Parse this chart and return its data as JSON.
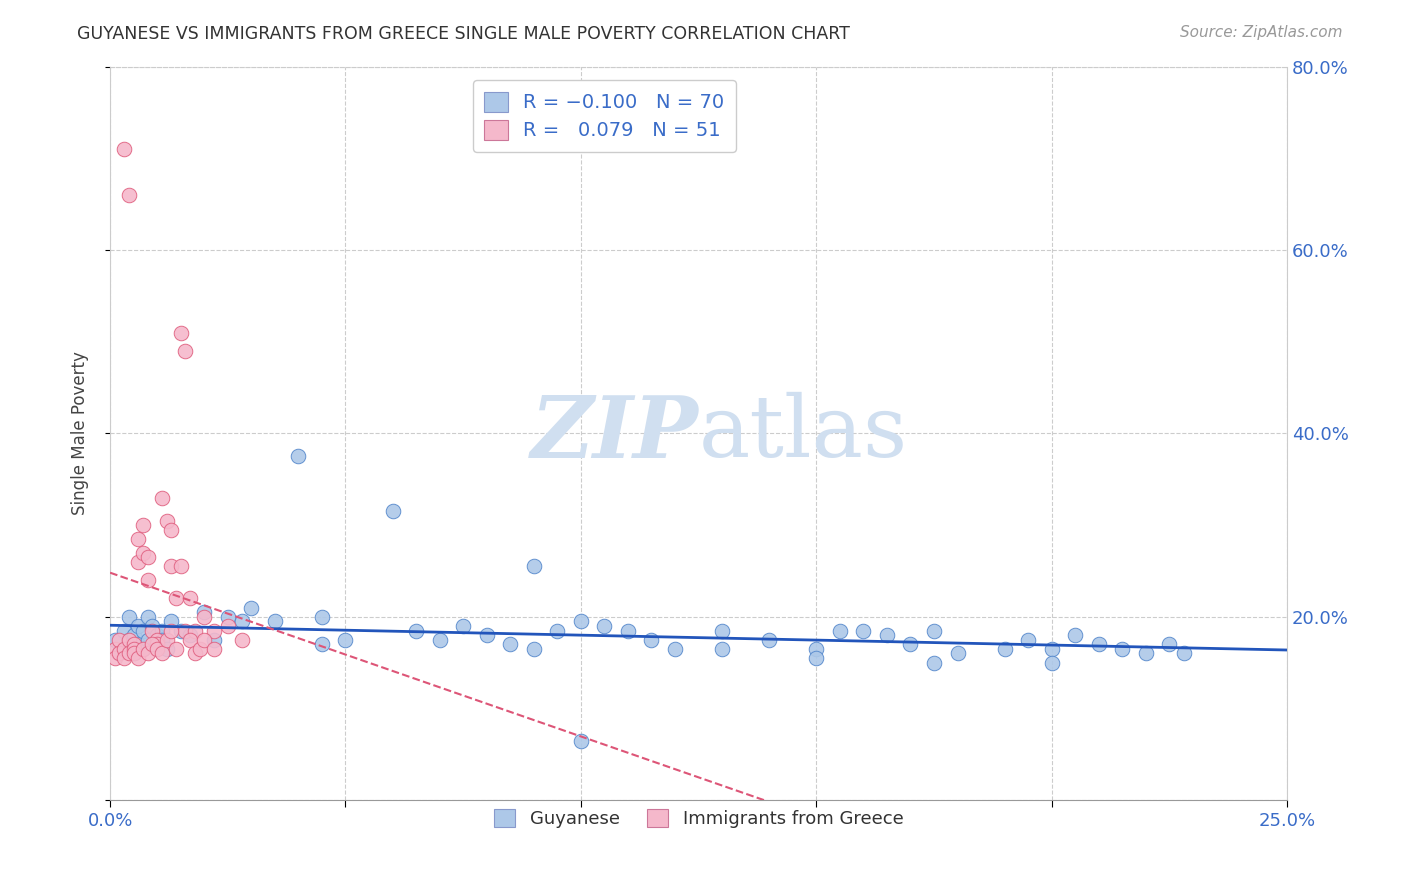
{
  "title": "GUYANESE VS IMMIGRANTS FROM GREECE SINGLE MALE POVERTY CORRELATION CHART",
  "source": "Source: ZipAtlas.com",
  "ylabel": "Single Male Poverty",
  "xlim": [
    0.0,
    0.25
  ],
  "ylim": [
    0.0,
    0.8
  ],
  "xticks": [
    0.0,
    0.05,
    0.1,
    0.15,
    0.2,
    0.25
  ],
  "yticks": [
    0.0,
    0.2,
    0.4,
    0.6,
    0.8
  ],
  "blue_R": -0.1,
  "blue_N": 70,
  "pink_R": 0.079,
  "pink_N": 51,
  "blue_color": "#adc8e8",
  "pink_color": "#f5b8cb",
  "blue_edge": "#5588cc",
  "pink_edge": "#e06080",
  "blue_line_color": "#2255bb",
  "pink_line_color": "#dd5577",
  "watermark_color": "#d0dff0",
  "legend_label_blue": "Guyanese",
  "legend_label_pink": "Immigrants from Greece",
  "blue_x": [
    0.001,
    0.002,
    0.003,
    0.003,
    0.004,
    0.004,
    0.005,
    0.005,
    0.006,
    0.006,
    0.007,
    0.007,
    0.008,
    0.008,
    0.009,
    0.01,
    0.01,
    0.011,
    0.011,
    0.012,
    0.013,
    0.015,
    0.017,
    0.02,
    0.022,
    0.025,
    0.028,
    0.03,
    0.035,
    0.04,
    0.045,
    0.05,
    0.06,
    0.065,
    0.07,
    0.075,
    0.08,
    0.085,
    0.09,
    0.095,
    0.1,
    0.105,
    0.11,
    0.115,
    0.12,
    0.13,
    0.14,
    0.15,
    0.16,
    0.165,
    0.17,
    0.175,
    0.18,
    0.19,
    0.195,
    0.2,
    0.205,
    0.21,
    0.215,
    0.22,
    0.225,
    0.228,
    0.1,
    0.13,
    0.155,
    0.175,
    0.09,
    0.045,
    0.15,
    0.2
  ],
  "blue_y": [
    0.175,
    0.16,
    0.185,
    0.165,
    0.2,
    0.175,
    0.18,
    0.16,
    0.19,
    0.17,
    0.185,
    0.165,
    0.2,
    0.175,
    0.19,
    0.18,
    0.17,
    0.185,
    0.175,
    0.165,
    0.195,
    0.185,
    0.18,
    0.205,
    0.175,
    0.2,
    0.195,
    0.21,
    0.195,
    0.375,
    0.2,
    0.175,
    0.315,
    0.185,
    0.175,
    0.19,
    0.18,
    0.17,
    0.255,
    0.185,
    0.195,
    0.19,
    0.185,
    0.175,
    0.165,
    0.185,
    0.175,
    0.165,
    0.185,
    0.18,
    0.17,
    0.185,
    0.16,
    0.165,
    0.175,
    0.165,
    0.18,
    0.17,
    0.165,
    0.16,
    0.17,
    0.16,
    0.065,
    0.165,
    0.185,
    0.15,
    0.165,
    0.17,
    0.155,
    0.15
  ],
  "pink_x": [
    0.001,
    0.001,
    0.002,
    0.002,
    0.003,
    0.003,
    0.004,
    0.004,
    0.005,
    0.005,
    0.006,
    0.006,
    0.007,
    0.007,
    0.008,
    0.008,
    0.009,
    0.01,
    0.01,
    0.011,
    0.012,
    0.013,
    0.013,
    0.014,
    0.015,
    0.016,
    0.017,
    0.018,
    0.02,
    0.022,
    0.003,
    0.004,
    0.005,
    0.006,
    0.007,
    0.008,
    0.009,
    0.01,
    0.011,
    0.012,
    0.013,
    0.014,
    0.015,
    0.016,
    0.017,
    0.018,
    0.019,
    0.02,
    0.022,
    0.025,
    0.028
  ],
  "pink_y": [
    0.165,
    0.155,
    0.175,
    0.16,
    0.165,
    0.155,
    0.175,
    0.16,
    0.17,
    0.165,
    0.285,
    0.26,
    0.3,
    0.27,
    0.265,
    0.24,
    0.185,
    0.175,
    0.17,
    0.33,
    0.305,
    0.255,
    0.295,
    0.22,
    0.255,
    0.185,
    0.22,
    0.185,
    0.2,
    0.185,
    0.71,
    0.66,
    0.16,
    0.155,
    0.165,
    0.16,
    0.17,
    0.165,
    0.16,
    0.175,
    0.185,
    0.165,
    0.51,
    0.49,
    0.175,
    0.16,
    0.165,
    0.175,
    0.165,
    0.19,
    0.175
  ]
}
